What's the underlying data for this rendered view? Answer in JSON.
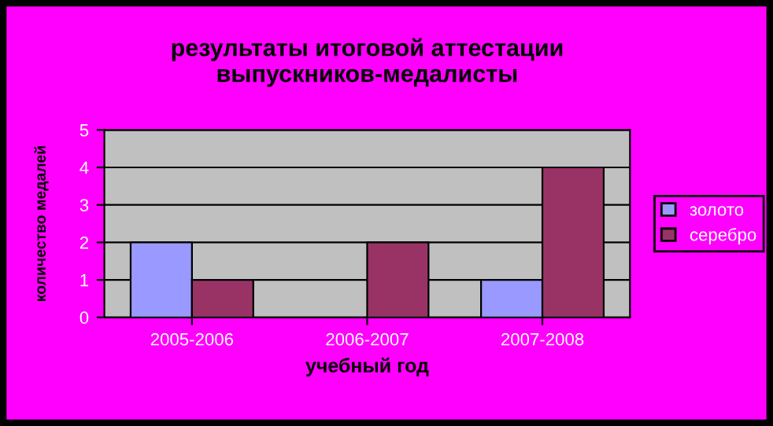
{
  "chart_data": {
    "type": "bar",
    "title": "результаты итоговой аттестации\nвыпускников-медалисты",
    "xlabel": "учебный год",
    "ylabel": "количество медалей",
    "categories": [
      "2005-2006",
      "2006-2007",
      "2007-2008"
    ],
    "series": [
      {
        "name": "золото",
        "color": "#9999ff",
        "values": [
          2,
          0,
          1
        ]
      },
      {
        "name": "серебро",
        "color": "#993366",
        "values": [
          1,
          2,
          4
        ]
      }
    ],
    "ylim": [
      0,
      5
    ],
    "yticks": [
      0,
      1,
      2,
      3,
      4,
      5
    ],
    "grid": "y",
    "legend": "right"
  }
}
